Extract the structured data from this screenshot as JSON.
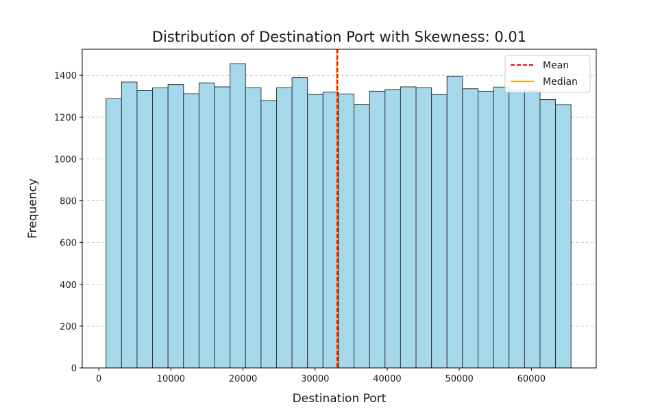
{
  "chart_data": {
    "type": "bar",
    "title": "Distribution of Destination Port with Skewness: 0.01",
    "xlabel": "Destination Port",
    "ylabel": "Frequency",
    "xlim": [
      -2300,
      69000
    ],
    "ylim": [
      0,
      1525
    ],
    "x_ticks": [
      0,
      10000,
      20000,
      30000,
      40000,
      50000,
      60000
    ],
    "y_ticks": [
      0,
      200,
      400,
      600,
      800,
      1000,
      1200,
      1400
    ],
    "grid": "horizontal dashed",
    "bin_start": 1000,
    "bin_width": 2150,
    "values": [
      1288,
      1368,
      1327,
      1340,
      1356,
      1312,
      1364,
      1345,
      1456,
      1341,
      1280,
      1341,
      1389,
      1308,
      1320,
      1311,
      1261,
      1324,
      1332,
      1345,
      1341,
      1308,
      1396,
      1336,
      1324,
      1344,
      1331,
      1326,
      1284,
      1260
    ],
    "bar_color": "#a6d8ec",
    "bar_edge_color": "#333333",
    "mean": 33100,
    "median": 33000,
    "mean_color": "#ff0000",
    "median_color": "#ffa500",
    "legend_position": "top-right",
    "legend": [
      {
        "label": "Mean",
        "style": "dashed",
        "color": "#ff0000"
      },
      {
        "label": "Median",
        "style": "solid",
        "color": "#ffa500"
      }
    ]
  }
}
